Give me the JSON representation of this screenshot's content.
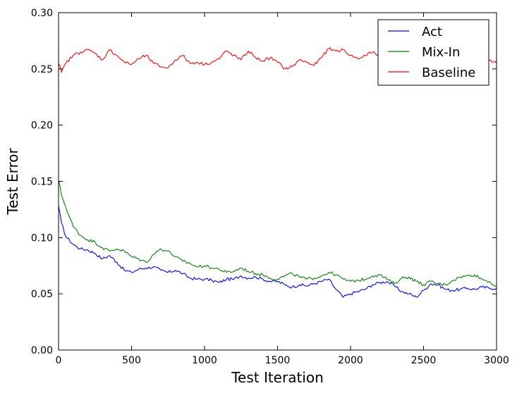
{
  "chart_data": {
    "type": "line",
    "title": "",
    "xlabel": "Test Iteration",
    "ylabel": "Test Error",
    "xlim": [
      0,
      3000
    ],
    "ylim": [
      0,
      0.3
    ],
    "xticks": [
      0,
      500,
      1000,
      1500,
      2000,
      2500,
      3000
    ],
    "xtick_labels": [
      "0",
      "500",
      "1000",
      "1500",
      "2000",
      "2500",
      "3000"
    ],
    "yticks": [
      0,
      0.05,
      0.1,
      0.15,
      0.2,
      0.25,
      0.3
    ],
    "ytick_labels": [
      "0.00",
      "0.05",
      "0.10",
      "0.15",
      "0.20",
      "0.25",
      "0.30"
    ],
    "grid": false,
    "legend": {
      "position": "top-right"
    },
    "series": [
      {
        "name": "Act",
        "color": "#0000ff",
        "x": [
          0,
          20,
          50,
          100,
          150,
          200,
          250,
          300,
          350,
          400,
          450,
          500,
          550,
          600,
          650,
          700,
          750,
          800,
          850,
          900,
          950,
          1000,
          1050,
          1100,
          1150,
          1200,
          1250,
          1300,
          1350,
          1400,
          1450,
          1500,
          1550,
          1600,
          1650,
          1700,
          1750,
          1800,
          1850,
          1900,
          1950,
          2000,
          2050,
          2100,
          2150,
          2200,
          2250,
          2300,
          2350,
          2400,
          2450,
          2500,
          2550,
          2600,
          2650,
          2700,
          2750,
          2800,
          2850,
          2900,
          2950,
          3000
        ],
        "y": [
          0.128,
          0.113,
          0.101,
          0.094,
          0.09,
          0.089,
          0.086,
          0.081,
          0.084,
          0.078,
          0.071,
          0.069,
          0.072,
          0.073,
          0.074,
          0.071,
          0.069,
          0.071,
          0.068,
          0.064,
          0.063,
          0.063,
          0.062,
          0.06,
          0.063,
          0.063,
          0.066,
          0.064,
          0.065,
          0.063,
          0.061,
          0.061,
          0.058,
          0.056,
          0.058,
          0.057,
          0.059,
          0.061,
          0.063,
          0.054,
          0.047,
          0.05,
          0.052,
          0.054,
          0.058,
          0.06,
          0.061,
          0.057,
          0.052,
          0.05,
          0.047,
          0.053,
          0.059,
          0.058,
          0.054,
          0.053,
          0.054,
          0.055,
          0.054,
          0.056,
          0.055,
          0.055
        ]
      },
      {
        "name": "Mix-In",
        "color": "#008000",
        "x": [
          0,
          20,
          50,
          100,
          150,
          200,
          250,
          300,
          350,
          400,
          450,
          500,
          550,
          600,
          650,
          700,
          750,
          800,
          850,
          900,
          950,
          1000,
          1050,
          1100,
          1150,
          1200,
          1250,
          1300,
          1350,
          1400,
          1450,
          1500,
          1550,
          1600,
          1650,
          1700,
          1750,
          1800,
          1850,
          1900,
          1950,
          2000,
          2050,
          2100,
          2150,
          2200,
          2250,
          2300,
          2350,
          2400,
          2450,
          2500,
          2550,
          2600,
          2650,
          2700,
          2750,
          2800,
          2850,
          2900,
          2950,
          3000
        ],
        "y": [
          0.151,
          0.138,
          0.127,
          0.11,
          0.102,
          0.098,
          0.096,
          0.091,
          0.088,
          0.09,
          0.088,
          0.083,
          0.081,
          0.078,
          0.085,
          0.09,
          0.088,
          0.083,
          0.079,
          0.077,
          0.074,
          0.075,
          0.073,
          0.072,
          0.069,
          0.07,
          0.073,
          0.07,
          0.068,
          0.067,
          0.064,
          0.063,
          0.066,
          0.068,
          0.065,
          0.063,
          0.064,
          0.066,
          0.069,
          0.067,
          0.063,
          0.061,
          0.062,
          0.063,
          0.066,
          0.067,
          0.063,
          0.059,
          0.064,
          0.065,
          0.061,
          0.058,
          0.061,
          0.059,
          0.058,
          0.062,
          0.065,
          0.066,
          0.067,
          0.063,
          0.061,
          0.056
        ]
      },
      {
        "name": "Baseline",
        "color": "#ff0000",
        "x": [
          0,
          20,
          50,
          100,
          150,
          200,
          250,
          300,
          350,
          400,
          450,
          500,
          550,
          600,
          650,
          700,
          750,
          800,
          850,
          900,
          950,
          1000,
          1050,
          1100,
          1150,
          1200,
          1250,
          1300,
          1350,
          1400,
          1450,
          1500,
          1550,
          1600,
          1650,
          1700,
          1750,
          1800,
          1850,
          1900,
          1950,
          2000,
          2050,
          2100,
          2150,
          2200,
          2250,
          2300,
          2350,
          2400,
          2450,
          2500,
          2550,
          2600,
          2650,
          2700,
          2750,
          2800,
          2850,
          2900,
          2950,
          3000
        ],
        "y": [
          0.255,
          0.247,
          0.255,
          0.262,
          0.265,
          0.267,
          0.264,
          0.258,
          0.267,
          0.262,
          0.256,
          0.254,
          0.259,
          0.262,
          0.255,
          0.252,
          0.251,
          0.258,
          0.262,
          0.255,
          0.256,
          0.254,
          0.256,
          0.259,
          0.266,
          0.262,
          0.258,
          0.266,
          0.26,
          0.257,
          0.26,
          0.256,
          0.25,
          0.252,
          0.258,
          0.256,
          0.253,
          0.26,
          0.268,
          0.266,
          0.267,
          0.262,
          0.259,
          0.262,
          0.265,
          0.262,
          0.256,
          0.261,
          0.262,
          0.259,
          0.259,
          0.26,
          0.264,
          0.26,
          0.26,
          0.262,
          0.257,
          0.262,
          0.26,
          0.258,
          0.258,
          0.255
        ]
      }
    ]
  }
}
